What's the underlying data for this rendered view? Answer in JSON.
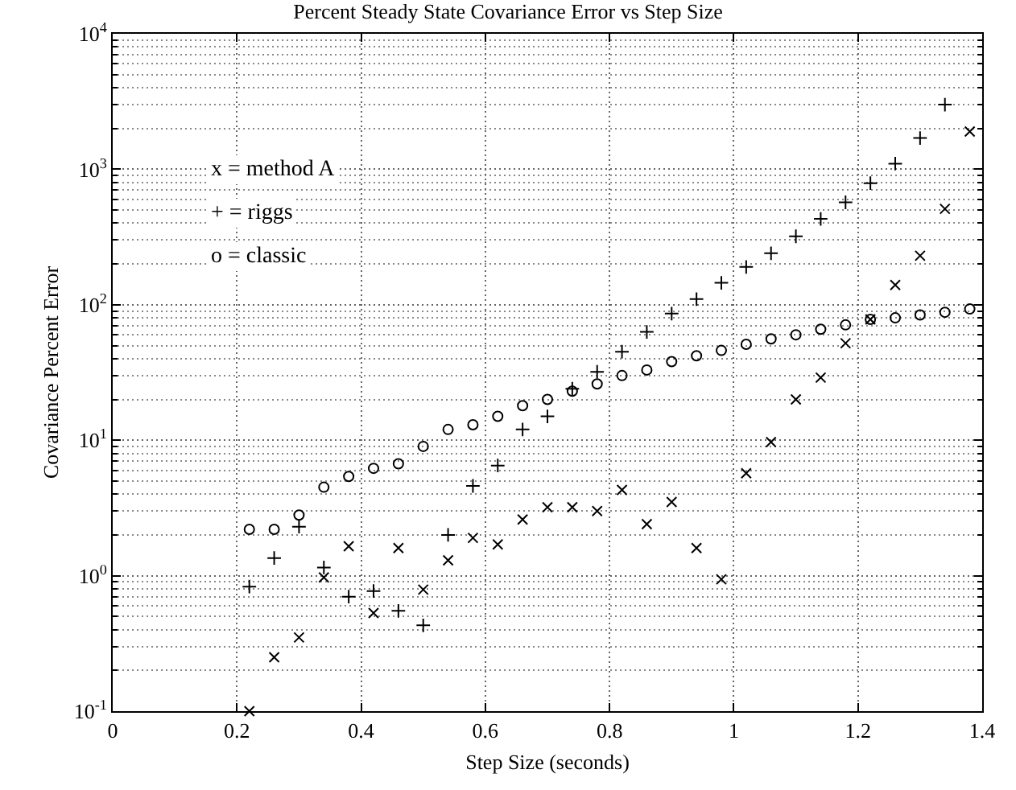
{
  "chart_data": {
    "type": "scatter",
    "title": "Percent Steady State Covariance Error vs Step Size",
    "xlabel": "Step Size (seconds)",
    "ylabel": "Covariance Percent Error",
    "annotations": [
      "x = method A",
      "+ = riggs",
      "o = classic"
    ],
    "series": [
      {
        "color": "#000000",
        "marker": "cross",
        "x": [
          0.22,
          0.26,
          0.3,
          0.34,
          0.38,
          0.42,
          0.46,
          0.5,
          0.54,
          0.58,
          0.62,
          0.66,
          0.7,
          0.74,
          0.78,
          0.82,
          0.86,
          0.9,
          0.94,
          0.98,
          1.02,
          1.06,
          1.1,
          1.14,
          1.18,
          1.22,
          1.26,
          1.3,
          1.34,
          1.38
        ],
        "values": [
          0.1,
          0.25,
          0.35,
          0.97,
          1.65,
          0.53,
          1.6,
          0.79,
          1.3,
          1.9,
          1.7,
          2.6,
          3.2,
          3.2,
          3.0,
          4.3,
          2.4,
          3.5,
          1.6,
          0.94,
          5.7,
          9.7,
          20,
          29,
          52,
          78,
          140,
          230,
          510,
          1900
        ]
      },
      {
        "color": "#000000",
        "marker": "plus",
        "x": [
          0.22,
          0.26,
          0.3,
          0.34,
          0.38,
          0.42,
          0.46,
          0.5,
          0.54,
          0.58,
          0.62,
          0.66,
          0.7,
          0.74,
          0.78,
          0.82,
          0.86,
          0.9,
          0.94,
          0.98,
          1.02,
          1.06,
          1.1,
          1.14,
          1.18,
          1.22,
          1.26,
          1.3,
          1.34
        ],
        "values": [
          0.83,
          1.35,
          2.3,
          1.15,
          0.7,
          0.77,
          0.55,
          0.43,
          2.0,
          4.6,
          6.5,
          12,
          15,
          24,
          32,
          45,
          63,
          86,
          110,
          145,
          190,
          240,
          320,
          430,
          570,
          790,
          1100,
          1700,
          3000
        ]
      },
      {
        "color": "#000000",
        "marker": "circle",
        "x": [
          0.22,
          0.26,
          0.3,
          0.34,
          0.38,
          0.42,
          0.46,
          0.5,
          0.54,
          0.58,
          0.62,
          0.66,
          0.7,
          0.74,
          0.78,
          0.82,
          0.86,
          0.9,
          0.94,
          0.98,
          1.02,
          1.06,
          1.1,
          1.14,
          1.18,
          1.22,
          1.26,
          1.3,
          1.34,
          1.38
        ],
        "values": [
          2.2,
          2.2,
          2.8,
          4.5,
          5.4,
          6.2,
          6.7,
          9.0,
          12,
          13,
          15,
          18,
          20,
          23,
          26,
          30,
          33,
          38,
          42,
          46,
          51,
          56,
          60,
          66,
          71,
          78,
          80,
          84,
          88,
          93
        ]
      }
    ],
    "xlim": [
      0,
      1.4
    ],
    "xticks": [
      0,
      0.2,
      0.4,
      0.6,
      0.8,
      1,
      1.2,
      1.4
    ],
    "ylim": [
      0.1,
      10000
    ],
    "yticks": [
      {
        "value": 0.1,
        "label": "10$^{-1}$"
      },
      {
        "value": 1,
        "label": "10$^{0}$"
      },
      {
        "value": 10,
        "label": "10$^{1}$"
      },
      {
        "value": 100,
        "label": "10$^{2}$"
      },
      {
        "value": 1000,
        "label": "10$^{3}$"
      },
      {
        "value": 10000,
        "label": "10$^{4}$"
      }
    ],
    "log": "y",
    "grid": true
  }
}
